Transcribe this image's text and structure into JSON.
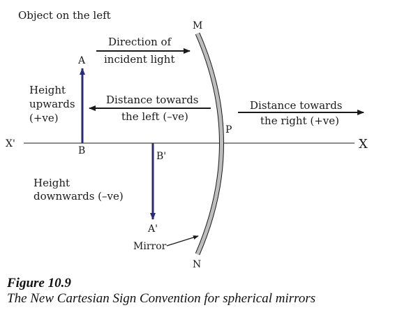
{
  "title": "Object on the left",
  "labels": {
    "incident_line1": "Direction of",
    "incident_line2": "incident light",
    "height_up_line1": "Height",
    "height_up_line2": "upwards",
    "height_up_line3": "(+ve)",
    "dist_left_line1": "Distance towards",
    "dist_left_line2": "the left (–ve)",
    "dist_right_line1": "Distance towards",
    "dist_right_line2": "the right (+ve)",
    "height_down_line1": "Height",
    "height_down_line2": "downwards (–ve)",
    "mirror": "Mirror"
  },
  "points": {
    "M": "M",
    "N": "N",
    "P": "P",
    "A": "A",
    "B": "B",
    "A_prime": "A'",
    "B_prime": "B'",
    "X_prime": "X'",
    "X": "X"
  },
  "caption": {
    "figure": "Figure 10.9",
    "text": "The New Cartesian Sign Convention for spherical mirrors"
  },
  "colors": {
    "arrow_blue": "#2a2a78",
    "mirror_gray": "#bdbdbd",
    "line_dark": "#1a1a1a"
  }
}
